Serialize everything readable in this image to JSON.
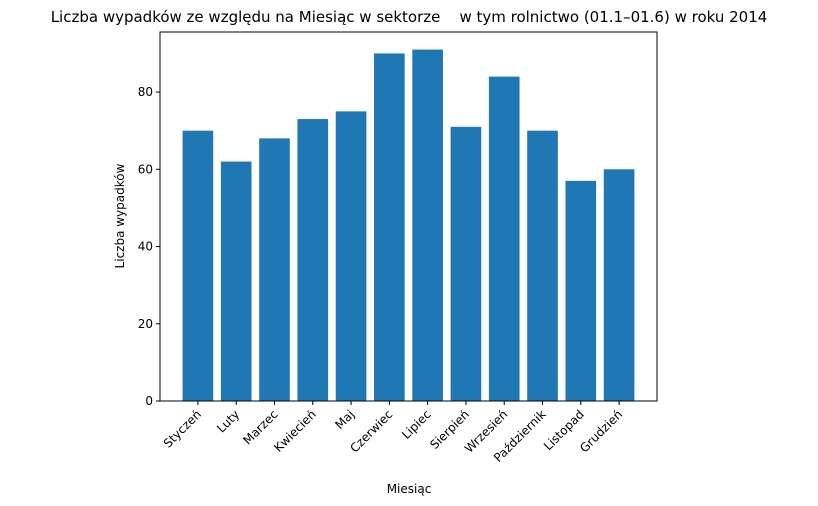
{
  "chart_data": {
    "type": "bar",
    "title": "Liczba wypadków ze względu na Miesiąc w sektorze    w tym rolnictwo (01.1–01.6) w roku 2014",
    "xlabel": "Miesiąc",
    "ylabel": "Liczba wypadków",
    "categories": [
      "Styczeń",
      "Luty",
      "Marzec",
      "Kwiecień",
      "Maj",
      "Czerwiec",
      "Lipiec",
      "Sierpień",
      "Wrzesień",
      "Październik",
      "Listopad",
      "Grudzień"
    ],
    "values": [
      70,
      62,
      68,
      73,
      75,
      90,
      91,
      71,
      84,
      70,
      57,
      60
    ],
    "ylim": [
      0,
      95.55
    ],
    "yticks": [
      0,
      20,
      40,
      60,
      80
    ],
    "bar_color": "#1f77b4",
    "grid": false,
    "legend": "none"
  }
}
